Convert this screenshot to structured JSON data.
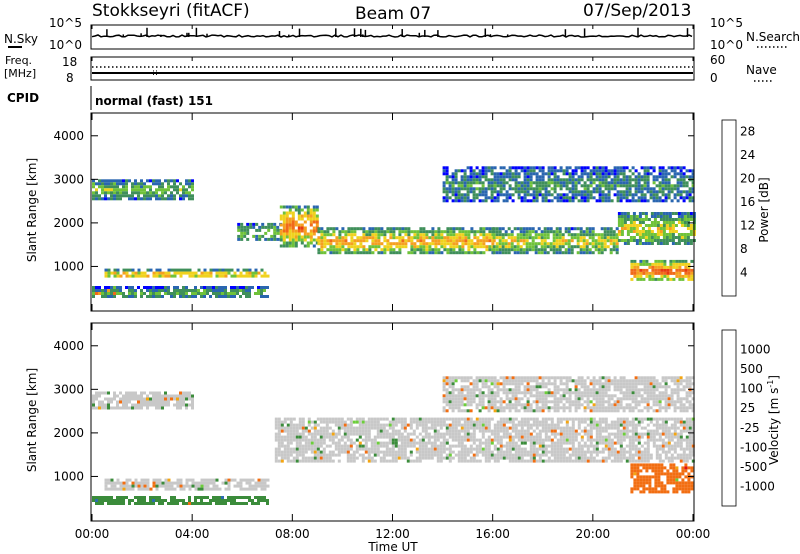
{
  "header": {
    "station": "Stokkseyri (fitACF)",
    "beam": "Beam 07",
    "date": "07/Sep/2013"
  },
  "nsky_panel": {
    "left_label": "N.Sky",
    "left_ticks": [
      "10^5",
      "10^0"
    ],
    "right_label": "N.Search",
    "right_ticks": [
      "10^5",
      "10^0"
    ]
  },
  "freq_panel": {
    "left_label_1": "Freq.",
    "left_label_2": "[MHz]",
    "left_ticks": [
      "18",
      "8"
    ],
    "right_label": "Nave",
    "right_ticks": [
      "60",
      "0"
    ],
    "cpid_label": "CPID",
    "cpid_value": "normal (fast) 151"
  },
  "colors": {
    "power_scale": [
      "#0000ff",
      "#2a66b0",
      "#3f8f5a",
      "#6fc23a",
      "#f0d21e",
      "#f5a020",
      "#f06a1a",
      "#e83a10"
    ],
    "velocity_scale": [
      "#1a37d6",
      "#2c6cb0",
      "#3b8c3b",
      "#6cce3a",
      "#c8c8c8",
      "#c8c8c8",
      "#f3a512",
      "#f26e12",
      "#ea3a16",
      "#e30f16"
    ]
  },
  "chart_data": [
    {
      "type": "heatmap",
      "title": "",
      "quantity": "Power",
      "ylabel": "Slant Range [km]",
      "ylim": [
        0,
        4500
      ],
      "yticks": [
        "1000",
        "2000",
        "3000",
        "4000"
      ],
      "xlim_hours": [
        0,
        24
      ],
      "colorbar_label": "Power [dB]",
      "colorbar_ticks": [
        "4",
        "8",
        "12",
        "16",
        "20",
        "24",
        "28"
      ],
      "colorbar_range": [
        0,
        30
      ],
      "echo_regions": [
        {
          "t0": 0.0,
          "t1": 4.0,
          "r0": 2550,
          "r1": 3000,
          "level": 12
        },
        {
          "t0": 0.0,
          "t1": 1.0,
          "r0": 350,
          "r1": 550,
          "level": 28
        },
        {
          "t0": 0.5,
          "t1": 7.0,
          "r0": 750,
          "r1": 950,
          "level": 20
        },
        {
          "t0": 0.0,
          "t1": 7.0,
          "r0": 300,
          "r1": 550,
          "level": 10
        },
        {
          "t0": 5.8,
          "t1": 7.5,
          "r0": 1600,
          "r1": 2000,
          "level": 12
        },
        {
          "t0": 7.5,
          "t1": 9.0,
          "r0": 1500,
          "r1": 2400,
          "level": 24
        },
        {
          "t0": 9.0,
          "t1": 16.0,
          "r0": 1300,
          "r1": 1900,
          "level": 20
        },
        {
          "t0": 16.0,
          "t1": 21.0,
          "r0": 1300,
          "r1": 1900,
          "level": 16
        },
        {
          "t0": 21.0,
          "t1": 24.0,
          "r0": 1500,
          "r1": 2250,
          "level": 16
        },
        {
          "t0": 14.0,
          "t1": 24.0,
          "r0": 2500,
          "r1": 3300,
          "level": 8
        },
        {
          "t0": 21.5,
          "t1": 24.0,
          "r0": 700,
          "r1": 1150,
          "level": 26
        }
      ],
      "time_ticks": [
        "00:00",
        "04:00",
        "08:00",
        "12:00",
        "16:00",
        "20:00",
        "00:00"
      ],
      "xlabel": ""
    },
    {
      "type": "heatmap",
      "title": "",
      "quantity": "Velocity",
      "ylabel": "Slant Range [km]",
      "ylim": [
        0,
        4500
      ],
      "yticks": [
        "1000",
        "2000",
        "3000",
        "4000"
      ],
      "xlim_hours": [
        0,
        24
      ],
      "colorbar_label": "Velocity [m s",
      "colorbar_label_sup": "-1",
      "colorbar_label_end": "]",
      "colorbar_ticks": [
        "1000",
        "500",
        "100",
        "25",
        "-25",
        "-100",
        "-500",
        "-1000"
      ],
      "colorbar_range": [
        -1000,
        1000
      ],
      "echo_regions": [
        {
          "t0": 0.0,
          "t1": 4.0,
          "r0": 2550,
          "r1": 2950,
          "value": 0
        },
        {
          "t0": 0.5,
          "t1": 7.0,
          "r0": 700,
          "r1": 950,
          "value": 0
        },
        {
          "t0": 0.0,
          "t1": 7.0,
          "r0": 350,
          "r1": 550,
          "value": 150
        },
        {
          "t0": 7.3,
          "t1": 24.0,
          "r0": 1350,
          "r1": 2350,
          "value": 0
        },
        {
          "t0": 14.0,
          "t1": 24.0,
          "r0": 2500,
          "r1": 3300,
          "value": 0
        },
        {
          "t0": 21.5,
          "t1": 24.0,
          "r0": 650,
          "r1": 1300,
          "value": -400
        }
      ],
      "time_ticks": [
        "00:00",
        "04:00",
        "08:00",
        "12:00",
        "16:00",
        "20:00",
        "00:00"
      ],
      "xlabel": "Time UT"
    }
  ]
}
